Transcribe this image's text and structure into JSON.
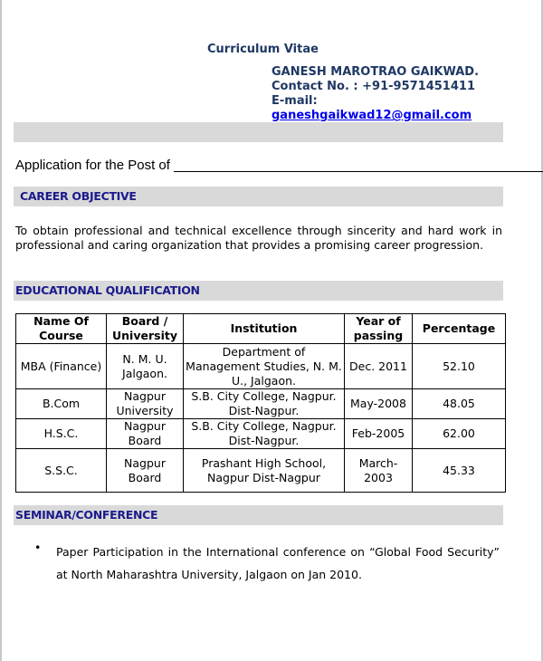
{
  "header": {
    "title": "Curriculum Vitae",
    "name": "GANESH MAROTRAO GAIKWAD.",
    "contact": "Contact No. : +91-9571451411",
    "email_label": "E-mail:",
    "email": "ganeshgaikwad12@gmail.com"
  },
  "application": {
    "label": "Application for the Post of"
  },
  "career": {
    "heading": "CAREER OBJECTIVE",
    "text": "To obtain professional and technical excellence through sincerity and hard work in professional and caring organization that provides a promising career progression."
  },
  "education": {
    "heading": "EDUCATIONAL QUALIFICATION",
    "columns": [
      "Name Of Course",
      "Board / University",
      "Institution",
      "Year of passing",
      "Percentage"
    ],
    "rows": [
      [
        "MBA (Finance)",
        "N. M. U. Jalgaon.",
        "Department of Management Studies, N. M. U., Jalgaon.",
        "Dec. 2011",
        "52.10"
      ],
      [
        "B.Com",
        "Nagpur University",
        "S.B. City College, Nagpur. Dist-Nagpur.",
        "May-2008",
        "48.05"
      ],
      [
        "H.S.C.",
        "Nagpur Board",
        "S.B. City College, Nagpur. Dist-Nagpur.",
        "Feb-2005",
        "62.00"
      ],
      [
        "S.S.C.",
        "Nagpur Board",
        "Prashant High School, Nagpur Dist-Nagpur",
        "March-2003",
        "45.33"
      ]
    ]
  },
  "seminar": {
    "heading": "SEMINAR/CONFERENCE",
    "items": [
      "Paper Participation in the International conference on “Global Food Security” at North Maharashtra University, Jalgaon on Jan 2010."
    ]
  }
}
